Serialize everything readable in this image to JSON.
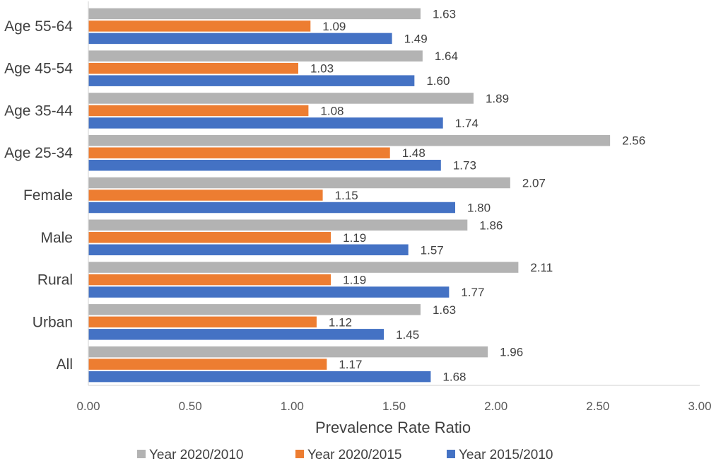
{
  "chart_data": {
    "type": "bar",
    "orientation": "horizontal",
    "categories": [
      "Age 55-64",
      "Age 45-54",
      "Age 35-44",
      "Age 25-34",
      "Female",
      "Male",
      "Rural",
      "Urban",
      "All"
    ],
    "series": [
      {
        "name": "Year 2020/2010",
        "color": "#b3b3b3",
        "values": [
          1.63,
          1.64,
          1.89,
          2.56,
          2.07,
          1.86,
          2.11,
          1.63,
          1.96
        ],
        "labels": [
          "1.63",
          "1.64",
          "1.89",
          "2.56",
          "2.07",
          "1.86",
          "2.11",
          "1.63",
          "1.96"
        ]
      },
      {
        "name": "Year 2020/2015",
        "color": "#ed7d31",
        "values": [
          1.09,
          1.03,
          1.08,
          1.48,
          1.15,
          1.19,
          1.19,
          1.12,
          1.17
        ],
        "labels": [
          "1.09",
          "1.03",
          "1.08",
          "1.48",
          "1.15",
          "1.19",
          "1.19",
          "1.12",
          "1.17"
        ]
      },
      {
        "name": "Year 2015/2010",
        "color": "#4472c4",
        "values": [
          1.49,
          1.6,
          1.74,
          1.73,
          1.8,
          1.57,
          1.77,
          1.45,
          1.68
        ],
        "labels": [
          "1.49",
          "1.60",
          "1.74",
          "1.73",
          "1.80",
          "1.57",
          "1.77",
          "1.45",
          "1.68"
        ]
      }
    ],
    "xlabel": "Prevalence Rate Ratio",
    "ylabel": "",
    "xlim": [
      0,
      3
    ],
    "ticks": [
      0,
      0.5,
      1.0,
      1.5,
      2.0,
      2.5,
      3.0
    ],
    "tick_labels": [
      "0.00",
      "0.50",
      "1.00",
      "1.50",
      "2.00",
      "2.50",
      "3.00"
    ],
    "grid": false,
    "legend": "bottom",
    "axis_color": "#d9d9d9"
  }
}
